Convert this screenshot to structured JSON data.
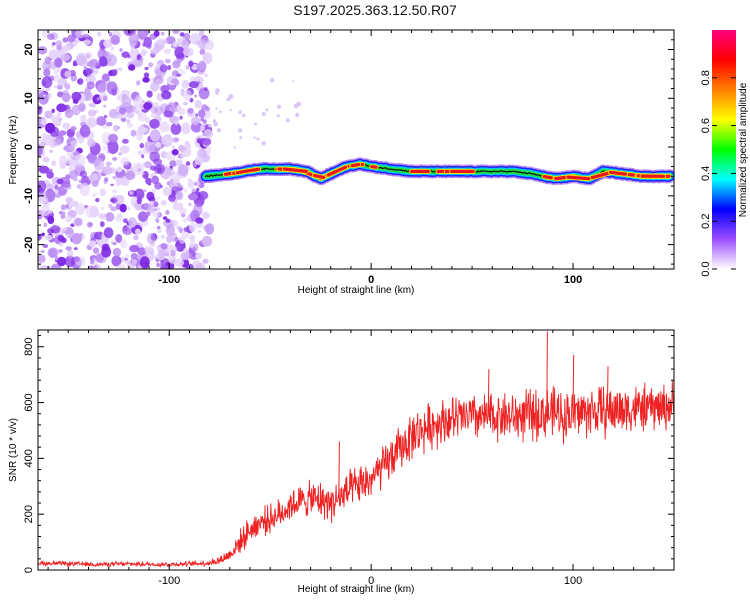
{
  "title": "S197.2025.363.12.50.R07",
  "chart_data": [
    {
      "type": "heatmap",
      "title": "S197.2025.363.12.50.R07",
      "xlabel": "Height of straight line (km)",
      "ylabel": "Frequency (Hz)",
      "xlim": [
        -165,
        150
      ],
      "ylim": [
        -25,
        24
      ],
      "xticks": [
        -100,
        0,
        100
      ],
      "xtick_labels": [
        "-100",
        "0",
        "100"
      ],
      "yticks": [
        -20,
        -10,
        0,
        10,
        20
      ],
      "ytick_labels": [
        "-20",
        "-10",
        "0",
        "10",
        "20"
      ],
      "noise_region_x": [
        -165,
        -80
      ],
      "trace": {
        "x": [
          -82,
          -70,
          -55,
          -40,
          -32,
          -25,
          -20,
          -12,
          -5,
          0,
          10,
          20,
          30,
          40,
          50,
          60,
          70,
          80,
          85,
          92,
          100,
          108,
          115,
          125,
          135,
          148
        ],
        "y": [
          -6,
          -5.5,
          -4.5,
          -4.5,
          -5,
          -6.5,
          -5.5,
          -4,
          -3.5,
          -4,
          -4.5,
          -5,
          -5,
          -5,
          -5,
          -5,
          -5,
          -5.5,
          -6,
          -6.5,
          -6,
          -6.5,
          -5,
          -5.5,
          -6,
          -6
        ]
      },
      "colorbar": {
        "label": "Normalized spectral amplitude",
        "range": [
          0,
          1
        ],
        "ticks": [
          0.0,
          0.2,
          0.4,
          0.6,
          0.8
        ],
        "tick_labels": [
          "0.0",
          "0.2",
          "0.4",
          "0.6",
          "0.8"
        ],
        "colors": [
          "#ffffff",
          "#9a4dff",
          "#0000ff",
          "#00ffff",
          "#00ff00",
          "#ffff00",
          "#ff7f00",
          "#ff0000",
          "#ff0080"
        ]
      }
    },
    {
      "type": "line",
      "xlabel": "Height of straight line (km)",
      "ylabel": "SNR (10 * v/v)",
      "xlim": [
        -165,
        150
      ],
      "ylim": [
        0,
        860
      ],
      "xticks": [
        -100,
        0,
        100
      ],
      "xtick_labels": [
        "-100",
        "0",
        "100"
      ],
      "yticks": [
        0,
        200,
        400,
        600,
        800
      ],
      "ytick_labels": [
        "0",
        "200",
        "400",
        "600",
        "800"
      ],
      "series": [
        {
          "name": "SNR",
          "color": "#ee2222",
          "x": [
            -165,
            -150,
            -135,
            -120,
            -105,
            -90,
            -80,
            -75,
            -70,
            -65,
            -60,
            -55,
            -50,
            -45,
            -40,
            -35,
            -30,
            -25,
            -20,
            -15,
            -10,
            -5,
            0,
            5,
            10,
            15,
            20,
            25,
            30,
            35,
            40,
            45,
            50,
            55,
            60,
            65,
            70,
            75,
            80,
            85,
            90,
            95,
            100,
            105,
            110,
            115,
            120,
            125,
            130,
            135,
            140,
            145,
            150
          ],
          "values": [
            25,
            22,
            20,
            22,
            20,
            22,
            25,
            35,
            55,
            100,
            145,
            170,
            185,
            200,
            235,
            245,
            255,
            250,
            240,
            260,
            285,
            305,
            325,
            360,
            400,
            440,
            480,
            500,
            520,
            535,
            540,
            545,
            550,
            545,
            550,
            555,
            548,
            552,
            555,
            560,
            565,
            555,
            560,
            565,
            570,
            568,
            572,
            575,
            580,
            578,
            582,
            585,
            590
          ],
          "noise": [
            10,
            10,
            10,
            10,
            10,
            10,
            12,
            20,
            30,
            50,
            55,
            60,
            60,
            65,
            70,
            70,
            75,
            80,
            80,
            85,
            85,
            85,
            85,
            90,
            95,
            95,
            100,
            100,
            100,
            100,
            100,
            100,
            100,
            100,
            105,
            105,
            105,
            110,
            110,
            110,
            110,
            110,
            110,
            110,
            110,
            110,
            110,
            105,
            105,
            100,
            100,
            100,
            100
          ],
          "spikes": [
            {
              "x": -16,
              "y": 460
            },
            {
              "x": 87,
              "y": 855
            },
            {
              "x": 100,
              "y": 770
            },
            {
              "x": 117,
              "y": 730
            },
            {
              "x": 58,
              "y": 720
            }
          ]
        }
      ]
    }
  ]
}
